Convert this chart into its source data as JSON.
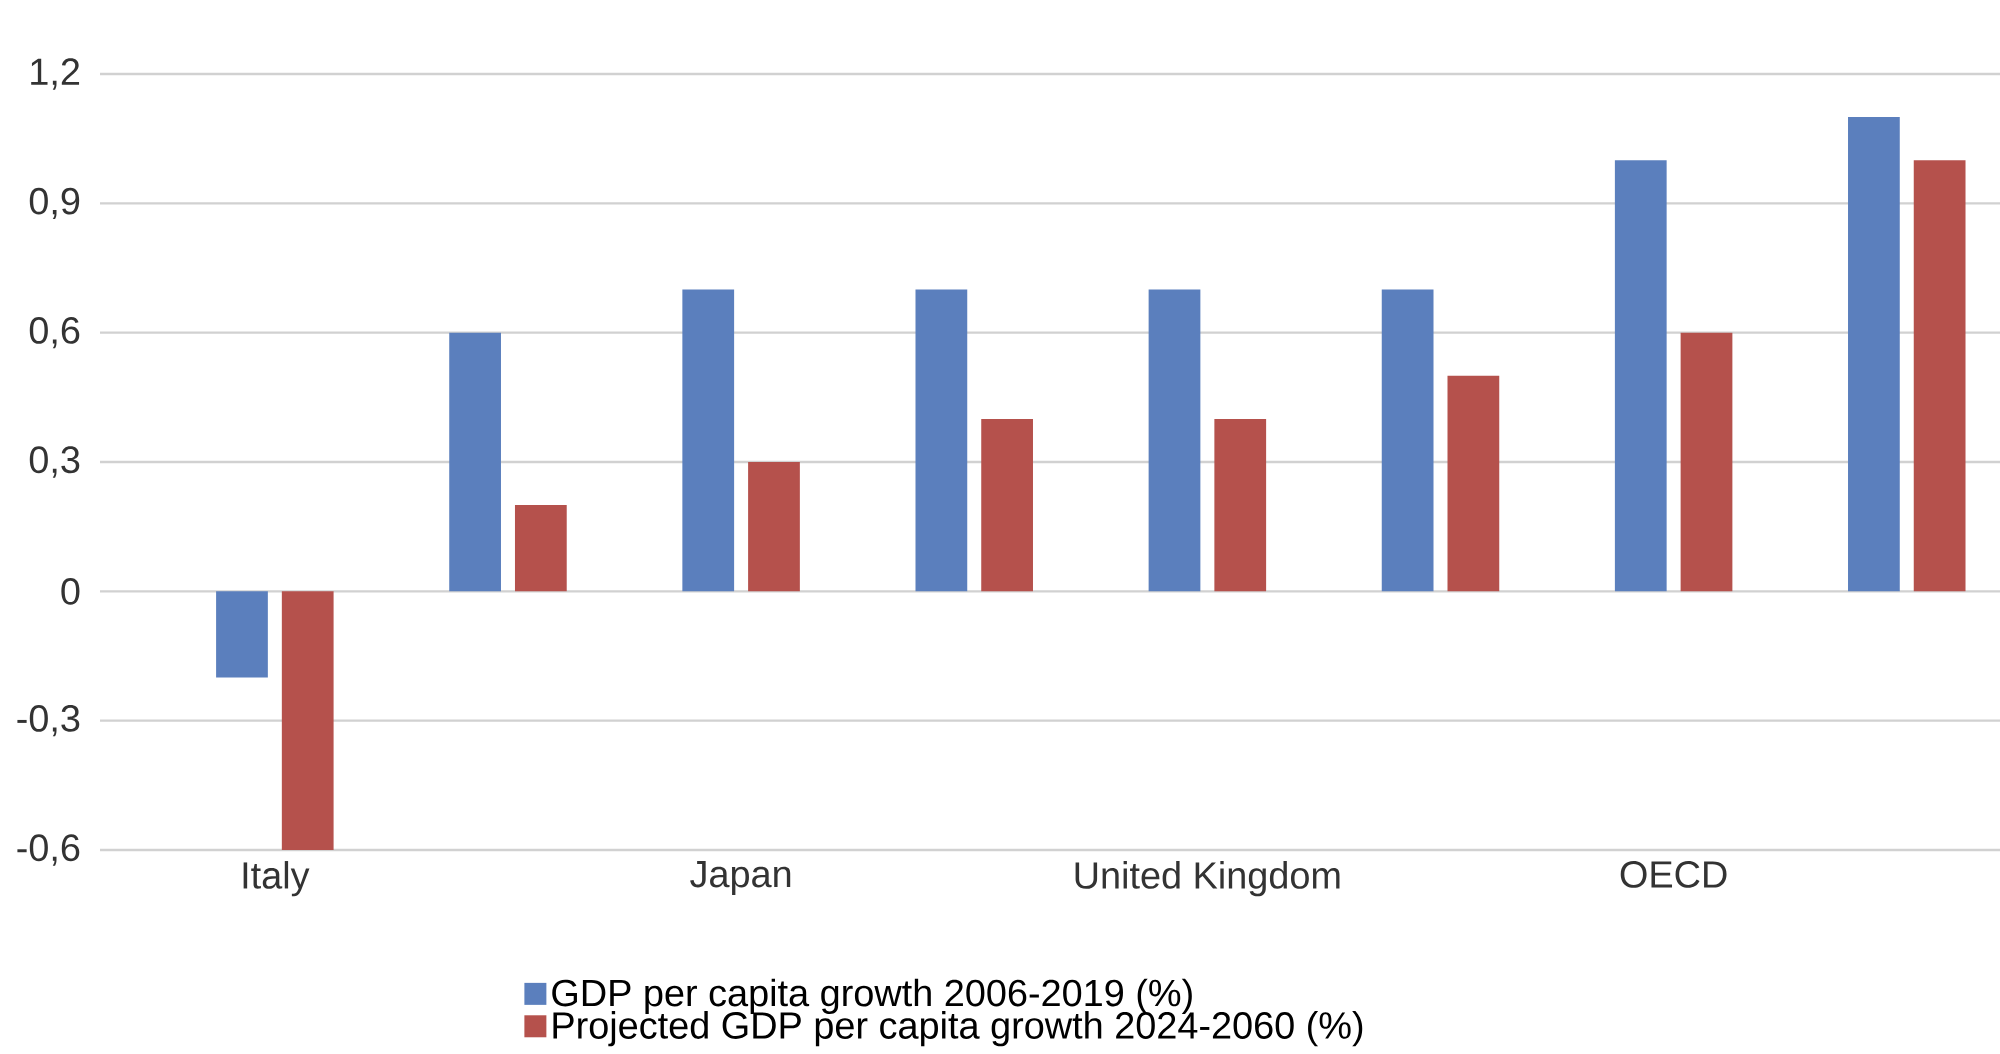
{
  "chart_data": {
    "type": "bar",
    "categories": [
      "Italy",
      null,
      "Japan",
      null,
      "United Kingdom",
      null,
      "OECD",
      null
    ],
    "series": [
      {
        "name": "GDP per capita growth 2006-2019 (%)",
        "color": "#5b7fbd",
        "values": [
          -0.2,
          0.6,
          0.7,
          0.7,
          0.7,
          0.7,
          1.0,
          1.1
        ]
      },
      {
        "name": "Projected GDP per capita growth 2024-2060 (%)",
        "color": "#b5514c",
        "values": [
          -0.6,
          0.2,
          0.3,
          0.4,
          0.4,
          0.5,
          0.6,
          1.0
        ]
      }
    ],
    "ylim": [
      -0.6,
      1.2
    ],
    "yticks": [
      {
        "value": -0.6,
        "label": "-0,6"
      },
      {
        "value": -0.3,
        "label": "-0,3"
      },
      {
        "value": 0,
        "label": "0"
      },
      {
        "value": 0.3,
        "label": "0,3"
      },
      {
        "value": 0.6,
        "label": "0,6"
      },
      {
        "value": 0.9,
        "label": "0,9"
      },
      {
        "value": 1.2,
        "label": "1,2"
      }
    ],
    "grid": "y",
    "legend": "bottom"
  }
}
